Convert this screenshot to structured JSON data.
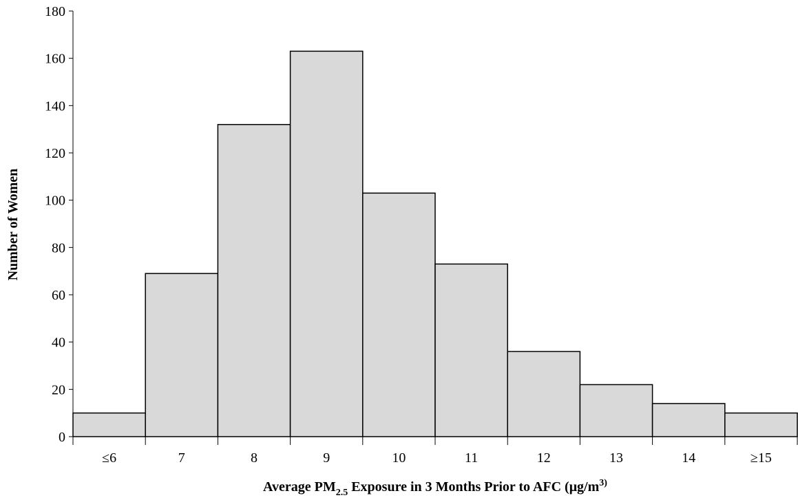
{
  "chart_data": {
    "type": "bar",
    "categories": [
      "≤6",
      "7",
      "8",
      "9",
      "10",
      "11",
      "12",
      "13",
      "14",
      "≥15"
    ],
    "values": [
      10,
      69,
      132,
      163,
      103,
      73,
      36,
      22,
      14,
      10
    ],
    "ylim": [
      0,
      180
    ],
    "yticks": [
      0,
      20,
      40,
      60,
      80,
      100,
      120,
      140,
      160,
      180
    ],
    "ylabel": "Number of Women",
    "xlabel": {
      "prefix": "Average PM",
      "subscript": "2.5",
      "middle": " Exposure in 3 Months Prior to AFC (μg/m",
      "superscript": "3)"
    },
    "grid": false,
    "legend": "none",
    "colors": {
      "bar_fill": "#d9d9d9",
      "bar_stroke": "#000000"
    }
  }
}
